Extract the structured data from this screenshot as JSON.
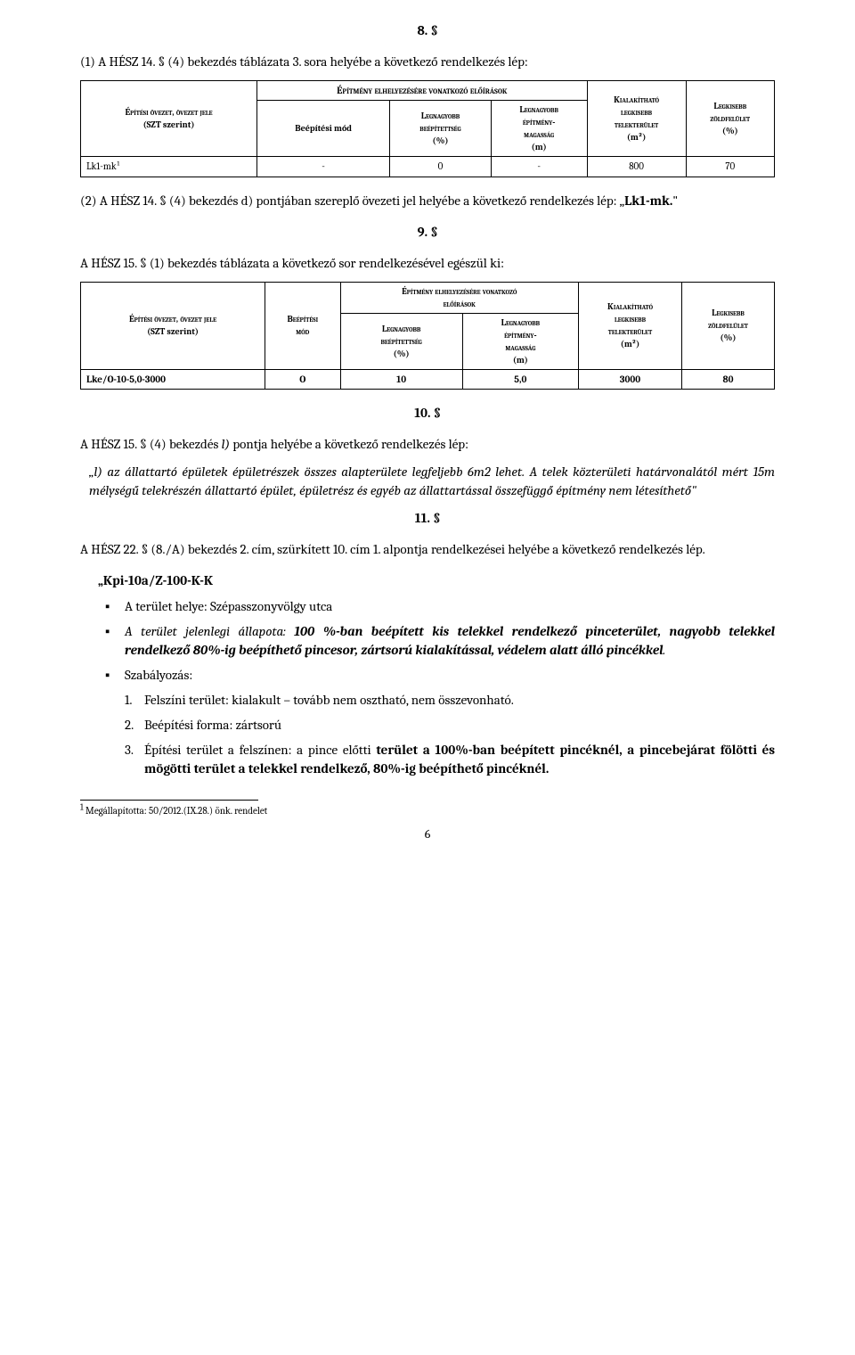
{
  "s8": {
    "num": "8. §",
    "p1": "(1) A HÉSZ 14. § (4) bekezdés táblázata 3. sora helyébe a következő rendelkezés lép:",
    "table": {
      "h_group": "Építmény elhelyezésére vonatkozó előírások",
      "h_zone1": "Építési övezet, övezet jele",
      "h_zone2": "(SZT szerint)",
      "h_mode": "Beépítési mód",
      "h_c1a": "Legnagyobb",
      "h_c1b": "beépítettség",
      "h_c1c": "(%)",
      "h_c2a": "Legnagyobb",
      "h_c2b": "építmény-",
      "h_c2c": "magasság",
      "h_c2d": "(m)",
      "h_c3a": "Kialakítható",
      "h_c3b": "legkisebb",
      "h_c3c": "telekterület",
      "h_c3d": "(m²)",
      "h_c4a": "Legkisebb",
      "h_c4b": "zöldfelület",
      "h_c4c": "(%)",
      "row": {
        "zone": "Lk1-mk¹",
        "mode": "-",
        "c1": "0",
        "c2": "-",
        "c3": "800",
        "c4": "70"
      }
    },
    "p2_a": "(2) A HÉSZ 14. § (4) bekezdés d) pontjában szereplő övezeti jel helyébe a következő rendelkezés lép: „",
    "p2_b": "Lk1-mk.",
    "p2_c": "\""
  },
  "s9": {
    "num": "9. §",
    "p1": "A HÉSZ 15. § (1) bekezdés táblázata a következő sor rendelkezésével egészül ki:",
    "table": {
      "h_group1": "Építmény elhelyezésére vonatkozó",
      "h_group2": "előírások",
      "h_zone1": "Építési övezet, övezet jele",
      "h_zone2": "(SZT szerint)",
      "h_mode1": "Beépítési",
      "h_mode2": "mód",
      "h_c1a": "Legnagyobb",
      "h_c1b": "beépítettség",
      "h_c1c": "(%)",
      "h_c2a": "Legnagyobb",
      "h_c2b": "építmény-",
      "h_c2c": "magasság",
      "h_c2d": "(m)",
      "h_c3a": "Kialakítható",
      "h_c3b": "legkisebb",
      "h_c3c": "telekterület",
      "h_c3d": "(m²)",
      "h_c4a": "Legkisebb",
      "h_c4b": "zöldfelület",
      "h_c4c": "(%)",
      "row": {
        "zone": "Lke/O-10-5,0-3000",
        "mode": "O",
        "c1": "10",
        "c2": "5,0",
        "c3": "3000",
        "c4": "80"
      }
    }
  },
  "s10": {
    "num": "10. §",
    "p1": "A HÉSZ 15. § (4) bekezdés l) pontja helyébe a következő rendelkezés lép:",
    "q1": "„l) az állattartó épületek épületrészek összes alapterülete legfeljebb 6m2 lehet. A telek közterületi határvonalától mért 15m mélységű telekrészén állattartó épület, épületrész és egyéb az állattartással összefüggő építmény nem létesíthető\""
  },
  "s11": {
    "num": "11. §",
    "p1": "A HÉSZ 22. § (8./A) bekezdés 2. cím, szürkített 10. cím 1. alpontja rendelkezései helyébe a következő rendelkezés lép.",
    "head": "„Kpi-10a/Z-100-K-K",
    "b1": "A terület helye: Szépasszonyvölgy utca",
    "b2_a": "A terület jelenlegi állapota: ",
    "b2_b": "100 %-ban beépített kis telekkel rendelkező pinceterület, nagyobb telekkel rendelkező 80%-ig beépíthető pincesor, zártsorú kialakítással, ",
    "b2_c": "védelem alatt álló pincékkel",
    "b2_d": ".",
    "b3": "Szabályozás:",
    "n1": "Felszíni terület: kialakult – tovább nem osztható, nem összevonható.",
    "n2": "Beépítési forma: zártsorú",
    "n3_a": "Építési terület a felszínen: a pince előtti ",
    "n3_b": "terület a 100%-ban beépített pincéknél, a pincebejárat fölötti és mögötti terület a telekkel rendelkező, 80%-ig beépíthető pincéknél."
  },
  "footnote": {
    "num": "1",
    "text": " Megállapította: 50/2012.(IX.28.) önk. rendelet"
  },
  "page": "6"
}
